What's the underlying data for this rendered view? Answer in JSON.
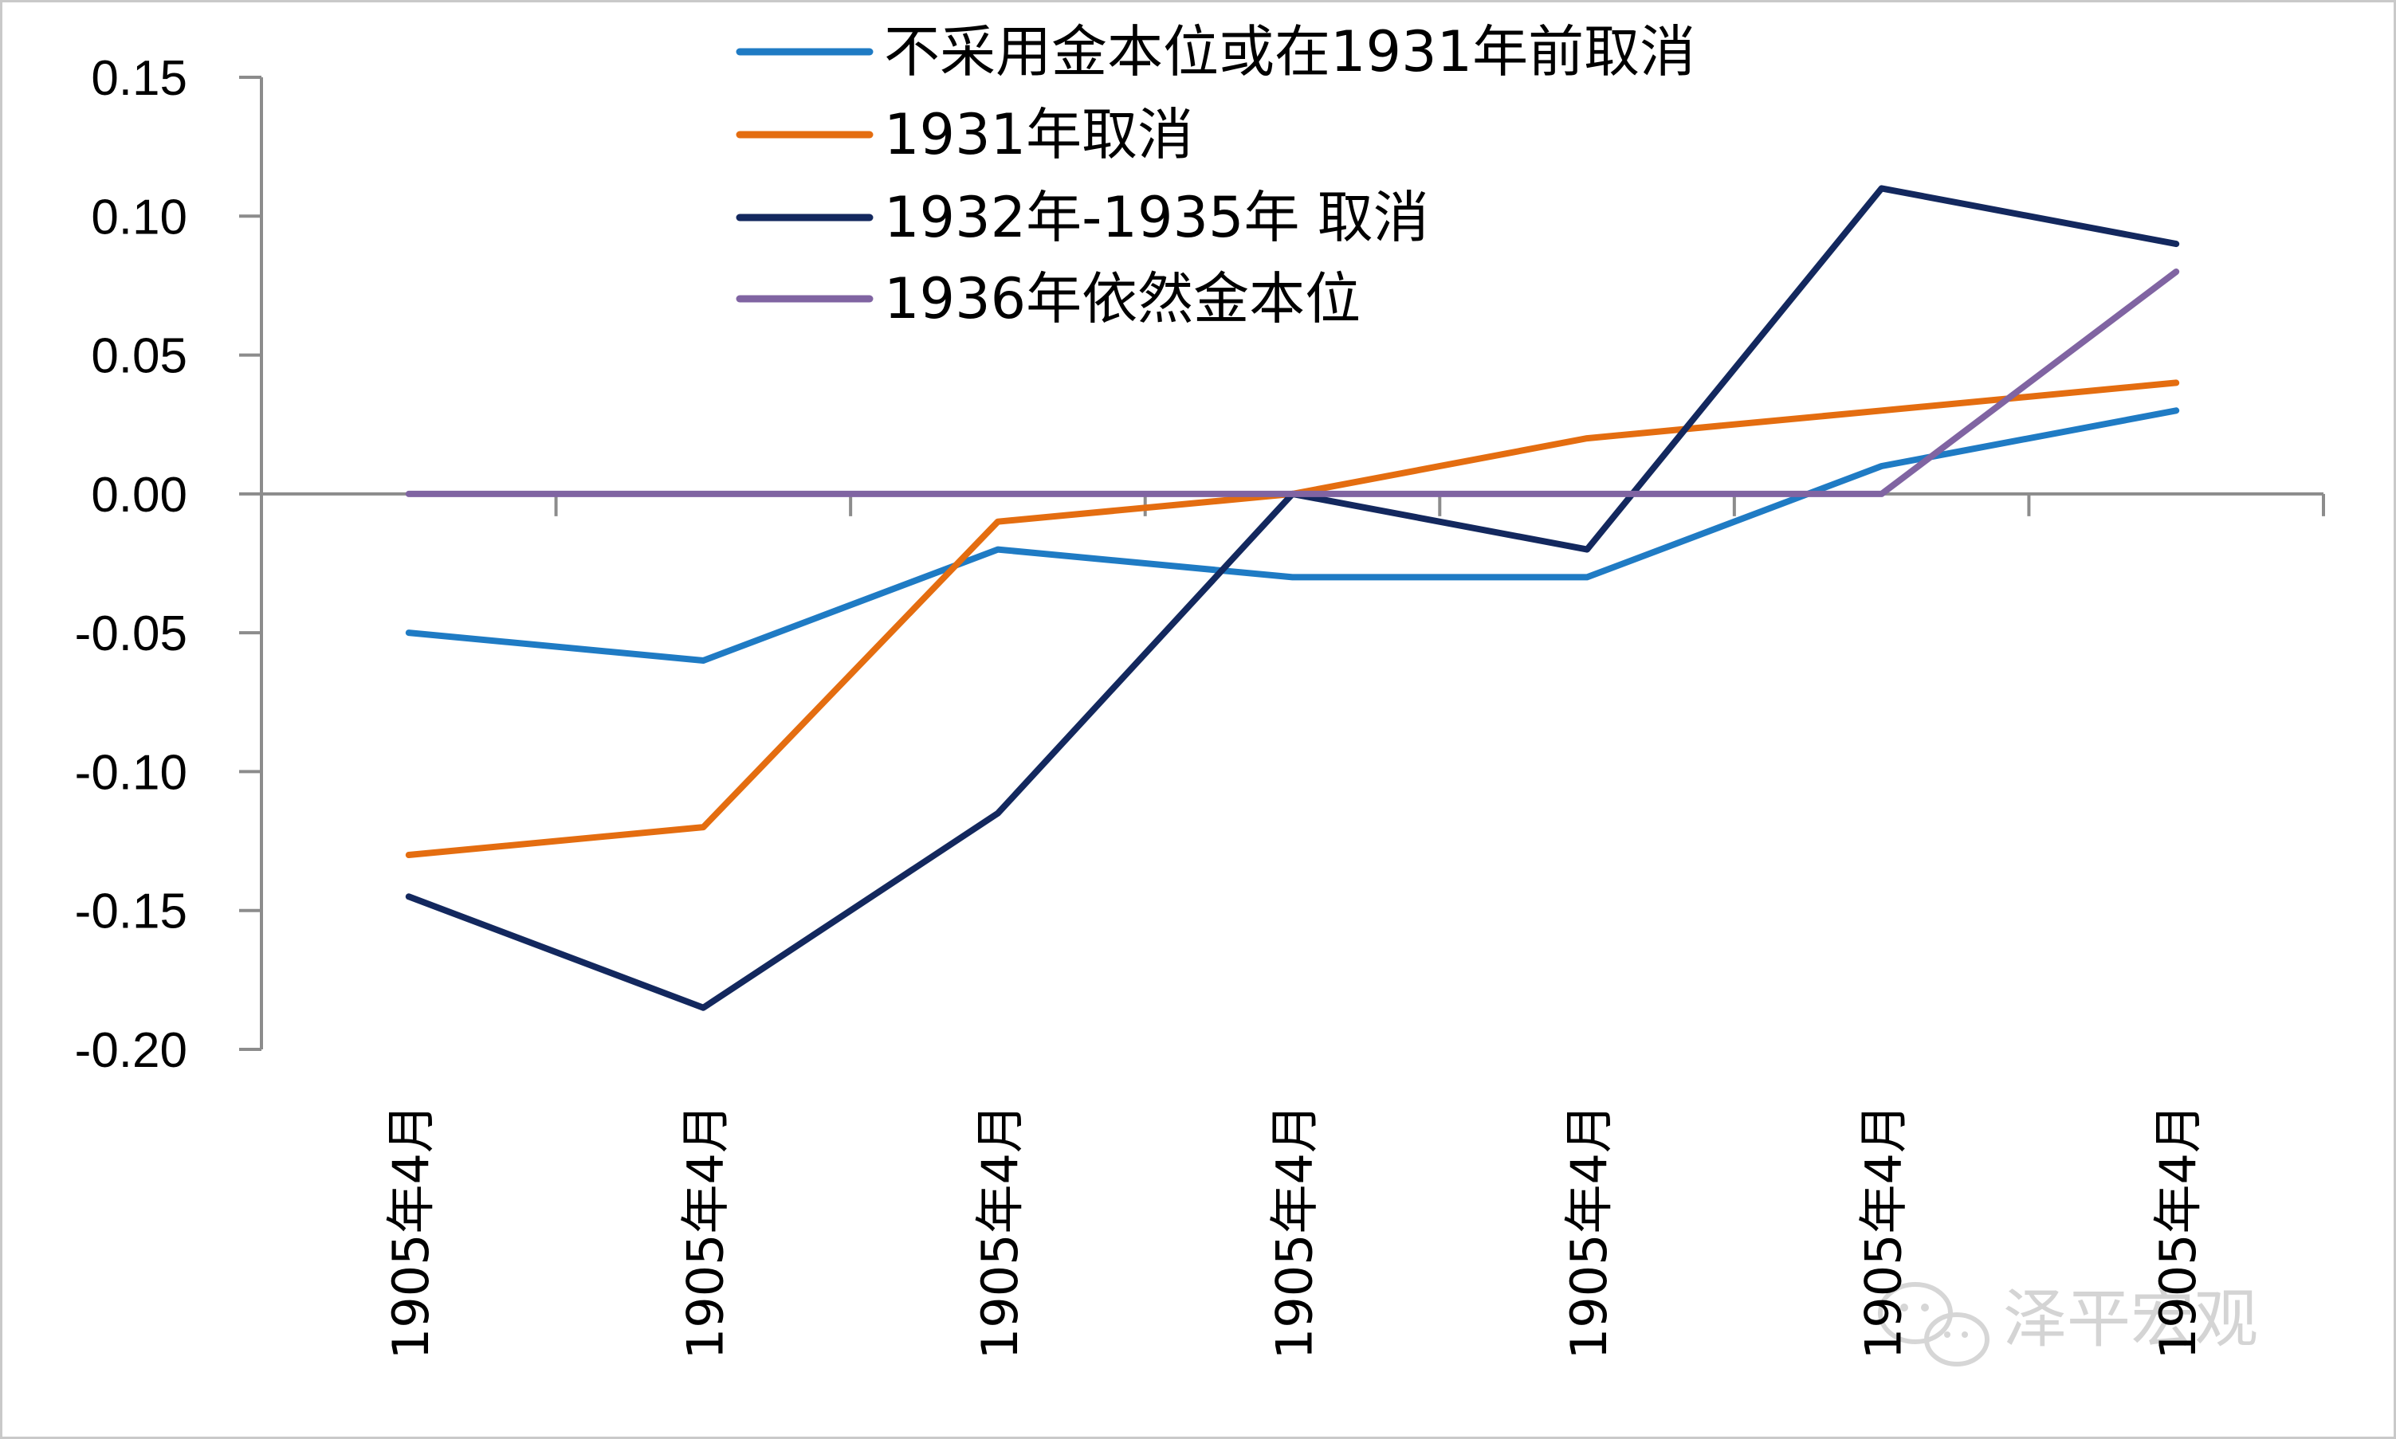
{
  "chart_data": {
    "type": "line",
    "title": "",
    "xlabel": "",
    "ylabel": "",
    "categories": [
      "1905年4月",
      "1905年4月",
      "1905年4月",
      "1905年4月",
      "1905年4月",
      "1905年4月",
      "1905年4月"
    ],
    "ylim": [
      -0.2,
      0.15
    ],
    "yticks": [
      "0.15",
      "0.10",
      "0.05",
      "0.00",
      "-0.05",
      "-0.10",
      "-0.15",
      "-0.20"
    ],
    "ytick_values": [
      0.15,
      0.1,
      0.05,
      0.0,
      -0.05,
      -0.1,
      -0.15,
      -0.2
    ],
    "legend_position": "top-center",
    "grid": false,
    "series": [
      {
        "name": "不采用金本位或在1931年前取消",
        "color": "#1f7bc4",
        "values": [
          -0.05,
          -0.06,
          -0.02,
          -0.03,
          -0.03,
          0.01,
          0.03
        ]
      },
      {
        "name": "1931年取消",
        "color": "#e46d10",
        "values": [
          -0.13,
          -0.12,
          -0.01,
          0.0,
          0.02,
          0.03,
          0.04
        ]
      },
      {
        "name": "1932年-1935年 取消",
        "color": "#13285e",
        "values": [
          -0.145,
          -0.185,
          -0.115,
          0.0,
          -0.02,
          0.11,
          0.09
        ]
      },
      {
        "name": "1936年依然金本位",
        "color": "#8064a2",
        "values": [
          0.0,
          0.0,
          0.0,
          0.0,
          0.0,
          0.0,
          0.08
        ]
      }
    ]
  },
  "watermark": {
    "text": "泽平宏观",
    "icon": "wechat-icon"
  }
}
